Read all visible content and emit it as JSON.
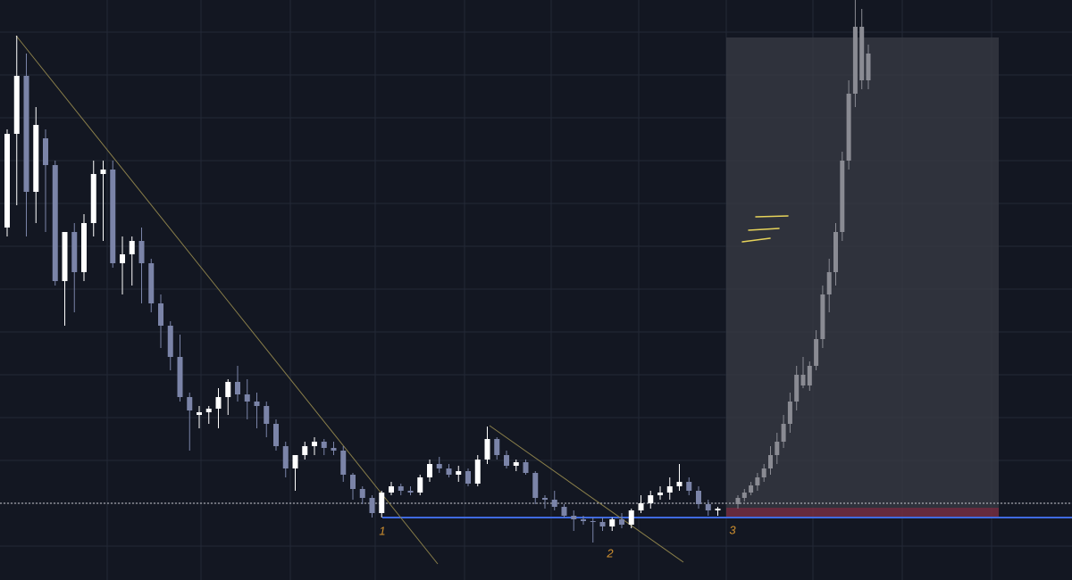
{
  "chart_data": {
    "type": "candlestick",
    "annotations": [
      "1",
      "2",
      "3"
    ],
    "ylim": [
      0,
      650
    ],
    "series": [
      {
        "color": "#ffffff",
        "down_color": "#7b84a8",
        "ohlc": [
          [
            395,
            505,
            385,
            500
          ],
          [
            500,
            610,
            420,
            565
          ],
          [
            565,
            590,
            385,
            435
          ],
          [
            435,
            530,
            400,
            510
          ],
          [
            495,
            505,
            390,
            465
          ],
          [
            465,
            470,
            330,
            335
          ],
          [
            335,
            390,
            285,
            390
          ],
          [
            390,
            400,
            300,
            345
          ],
          [
            345,
            410,
            335,
            400
          ],
          [
            400,
            470,
            385,
            455
          ],
          [
            455,
            470,
            380,
            460
          ],
          [
            460,
            470,
            350,
            355
          ],
          [
            355,
            385,
            320,
            365
          ],
          [
            365,
            385,
            330,
            380
          ],
          [
            380,
            395,
            310,
            355
          ],
          [
            355,
            360,
            300,
            310
          ],
          [
            310,
            320,
            260,
            285
          ],
          [
            285,
            290,
            235,
            250
          ],
          [
            250,
            275,
            200,
            205
          ],
          [
            205,
            210,
            145,
            190
          ],
          [
            185,
            195,
            170,
            188
          ],
          [
            188,
            195,
            175,
            192
          ],
          [
            192,
            215,
            170,
            205
          ],
          [
            205,
            225,
            185,
            222
          ],
          [
            222,
            240,
            200,
            208
          ],
          [
            208,
            225,
            180,
            200
          ],
          [
            200,
            210,
            170,
            195
          ],
          [
            195,
            200,
            160,
            175
          ],
          [
            175,
            180,
            145,
            150
          ],
          [
            150,
            155,
            115,
            125
          ],
          [
            125,
            140,
            100,
            140
          ],
          [
            140,
            155,
            135,
            150
          ],
          [
            150,
            160,
            140,
            155
          ],
          [
            155,
            158,
            140,
            148
          ],
          [
            148,
            155,
            140,
            145
          ],
          [
            145,
            150,
            110,
            118
          ],
          [
            118,
            120,
            90,
            102
          ],
          [
            102,
            105,
            85,
            92
          ],
          [
            92,
            95,
            70,
            75
          ],
          [
            75,
            100,
            70,
            98
          ],
          [
            98,
            110,
            95,
            105
          ],
          [
            105,
            108,
            95,
            100
          ],
          [
            100,
            105,
            95,
            98
          ],
          [
            98,
            118,
            95,
            115
          ],
          [
            115,
            135,
            110,
            130
          ],
          [
            130,
            138,
            120,
            125
          ],
          [
            125,
            130,
            115,
            118
          ],
          [
            118,
            128,
            110,
            122
          ],
          [
            122,
            125,
            105,
            108
          ],
          [
            108,
            140,
            105,
            135
          ],
          [
            135,
            172,
            130,
            158
          ],
          [
            158,
            160,
            135,
            140
          ],
          [
            140,
            145,
            125,
            128
          ],
          [
            128,
            135,
            122,
            132
          ],
          [
            132,
            135,
            118,
            120
          ],
          [
            120,
            122,
            85,
            92
          ],
          [
            92,
            95,
            80,
            90
          ],
          [
            90,
            100,
            78,
            82
          ],
          [
            82,
            85,
            70,
            72
          ],
          [
            72,
            78,
            55,
            68
          ],
          [
            68,
            72,
            62,
            66
          ],
          [
            66,
            70,
            42,
            65
          ],
          [
            65,
            70,
            55,
            60
          ],
          [
            60,
            70,
            55,
            68
          ],
          [
            68,
            75,
            58,
            62
          ],
          [
            62,
            80,
            58,
            78
          ],
          [
            78,
            95,
            75,
            86
          ],
          [
            86,
            100,
            80,
            95
          ],
          [
            95,
            105,
            90,
            98
          ],
          [
            98,
            115,
            90,
            105
          ],
          [
            105,
            130,
            100,
            110
          ],
          [
            110,
            115,
            95,
            100
          ],
          [
            100,
            105,
            80,
            85
          ],
          [
            85,
            90,
            72,
            78
          ],
          [
            78,
            82,
            72,
            80
          ]
        ]
      },
      {
        "color": "#8a8b93",
        "ohlc": [
          [
            85,
            95,
            80,
            92
          ],
          [
            92,
            102,
            88,
            98
          ],
          [
            98,
            110,
            95,
            106
          ],
          [
            106,
            120,
            100,
            115
          ],
          [
            115,
            130,
            110,
            125
          ],
          [
            125,
            150,
            118,
            140
          ],
          [
            140,
            165,
            130,
            155
          ],
          [
            155,
            185,
            148,
            175
          ],
          [
            175,
            210,
            165,
            200
          ],
          [
            200,
            240,
            190,
            230
          ],
          [
            230,
            250,
            215,
            218
          ],
          [
            218,
            245,
            212,
            240
          ],
          [
            240,
            280,
            235,
            270
          ],
          [
            270,
            330,
            260,
            320
          ],
          [
            320,
            360,
            300,
            345
          ],
          [
            345,
            400,
            330,
            390
          ],
          [
            390,
            480,
            380,
            470
          ],
          [
            470,
            560,
            460,
            545
          ],
          [
            545,
            650,
            530,
            620
          ],
          [
            620,
            640,
            550,
            560
          ],
          [
            560,
            600,
            550,
            590
          ]
        ]
      }
    ]
  }
}
